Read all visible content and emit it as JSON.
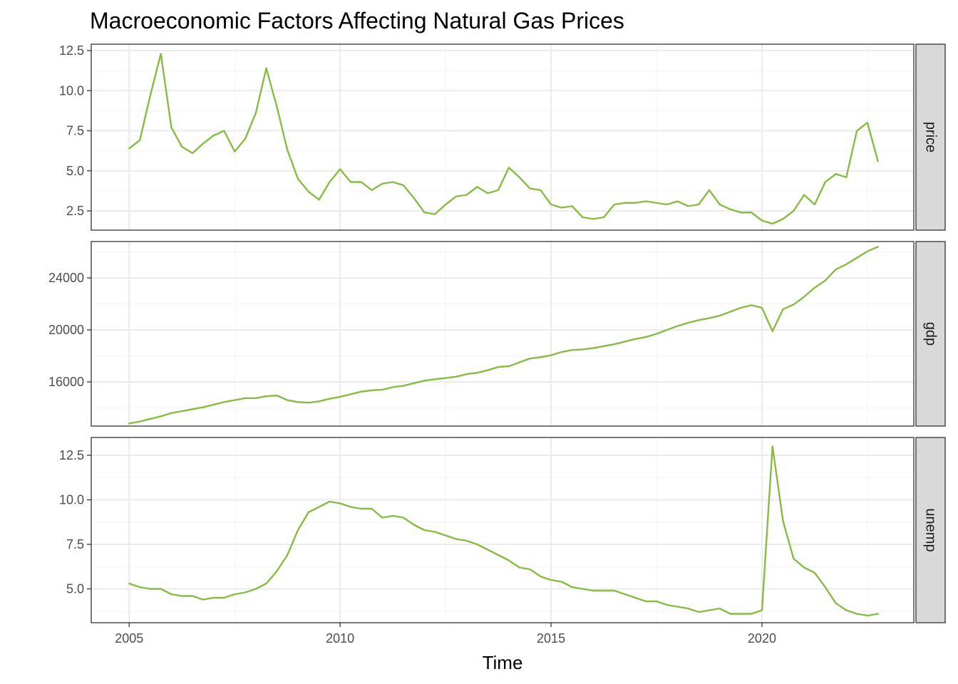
{
  "chart_data": {
    "type": "line",
    "title": "Macroeconomic Factors Affecting Natural Gas Prices",
    "xlabel": "Time",
    "xlim": [
      2004.1,
      2023.6
    ],
    "x_ticks": [
      2005,
      2010,
      2015,
      2020
    ],
    "color": "#86bc42",
    "grid": true,
    "x": [
      2005.0,
      2005.25,
      2005.5,
      2005.75,
      2006.0,
      2006.25,
      2006.5,
      2006.75,
      2007.0,
      2007.25,
      2007.5,
      2007.75,
      2008.0,
      2008.25,
      2008.5,
      2008.75,
      2009.0,
      2009.25,
      2009.5,
      2009.75,
      2010.0,
      2010.25,
      2010.5,
      2010.75,
      2011.0,
      2011.25,
      2011.5,
      2011.75,
      2012.0,
      2012.25,
      2012.5,
      2012.75,
      2013.0,
      2013.25,
      2013.5,
      2013.75,
      2014.0,
      2014.25,
      2014.5,
      2014.75,
      2015.0,
      2015.25,
      2015.5,
      2015.75,
      2016.0,
      2016.25,
      2016.5,
      2016.75,
      2017.0,
      2017.25,
      2017.5,
      2017.75,
      2018.0,
      2018.25,
      2018.5,
      2018.75,
      2019.0,
      2019.25,
      2019.5,
      2019.75,
      2020.0,
      2020.25,
      2020.5,
      2020.75,
      2021.0,
      2021.25,
      2021.5,
      2021.75,
      2022.0,
      2022.25,
      2022.5,
      2022.75
    ],
    "panels": [
      {
        "name": "price",
        "ylim": [
          1.3,
          12.9
        ],
        "y_ticks": [
          2.5,
          5.0,
          7.5,
          10.0,
          12.5
        ],
        "y_tick_labels": [
          "2.5",
          "5.0",
          "7.5",
          "10.0",
          "12.5"
        ],
        "values": [
          6.4,
          6.9,
          9.7,
          12.3,
          7.7,
          6.5,
          6.1,
          6.7,
          7.2,
          7.5,
          6.2,
          7.0,
          8.6,
          11.4,
          9.0,
          6.3,
          4.5,
          3.7,
          3.2,
          4.3,
          5.1,
          4.3,
          4.3,
          3.8,
          4.2,
          4.3,
          4.1,
          3.3,
          2.4,
          2.3,
          2.9,
          3.4,
          3.5,
          4.0,
          3.6,
          3.8,
          5.2,
          4.6,
          3.9,
          3.8,
          2.9,
          2.7,
          2.8,
          2.1,
          2.0,
          2.1,
          2.9,
          3.0,
          3.0,
          3.1,
          3.0,
          2.9,
          3.1,
          2.8,
          2.9,
          3.8,
          2.9,
          2.6,
          2.4,
          2.4,
          1.9,
          1.7,
          2.0,
          2.5,
          3.5,
          2.9,
          4.3,
          4.8,
          4.6,
          7.5,
          8.0,
          5.6
        ]
      },
      {
        "name": "gdp",
        "ylim": [
          12600,
          26800
        ],
        "y_ticks": [
          16000,
          20000,
          24000
        ],
        "y_tick_labels": [
          "16000",
          "20000",
          "24000"
        ],
        "values": [
          12800,
          12950,
          13150,
          13350,
          13600,
          13750,
          13900,
          14050,
          14250,
          14450,
          14600,
          14750,
          14750,
          14900,
          14950,
          14600,
          14450,
          14400,
          14500,
          14700,
          14850,
          15050,
          15250,
          15350,
          15400,
          15600,
          15700,
          15900,
          16100,
          16200,
          16300,
          16400,
          16600,
          16700,
          16900,
          17150,
          17200,
          17500,
          17800,
          17900,
          18050,
          18300,
          18450,
          18500,
          18600,
          18750,
          18900,
          19100,
          19300,
          19450,
          19700,
          20000,
          20300,
          20550,
          20750,
          20900,
          21100,
          21400,
          21700,
          21900,
          21700,
          19900,
          21600,
          21950,
          22550,
          23250,
          23800,
          24650,
          25050,
          25550,
          26050,
          26400
        ]
      },
      {
        "name": "unemp",
        "ylim": [
          3.1,
          13.5
        ],
        "y_ticks": [
          5.0,
          7.5,
          10.0,
          12.5
        ],
        "y_tick_labels": [
          "5.0",
          "7.5",
          "10.0",
          "12.5"
        ],
        "values": [
          5.3,
          5.1,
          5.0,
          5.0,
          4.7,
          4.6,
          4.6,
          4.4,
          4.5,
          4.5,
          4.7,
          4.8,
          5.0,
          5.3,
          6.0,
          6.9,
          8.3,
          9.3,
          9.6,
          9.9,
          9.8,
          9.6,
          9.5,
          9.5,
          9.0,
          9.1,
          9.0,
          8.6,
          8.3,
          8.2,
          8.0,
          7.8,
          7.7,
          7.5,
          7.2,
          6.9,
          6.6,
          6.2,
          6.1,
          5.7,
          5.5,
          5.4,
          5.1,
          5.0,
          4.9,
          4.9,
          4.9,
          4.7,
          4.5,
          4.3,
          4.3,
          4.1,
          4.0,
          3.9,
          3.7,
          3.8,
          3.9,
          3.6,
          3.6,
          3.6,
          3.8,
          13.0,
          8.8,
          6.7,
          6.2,
          5.9,
          5.1,
          4.2,
          3.8,
          3.6,
          3.5,
          3.6
        ]
      }
    ]
  }
}
